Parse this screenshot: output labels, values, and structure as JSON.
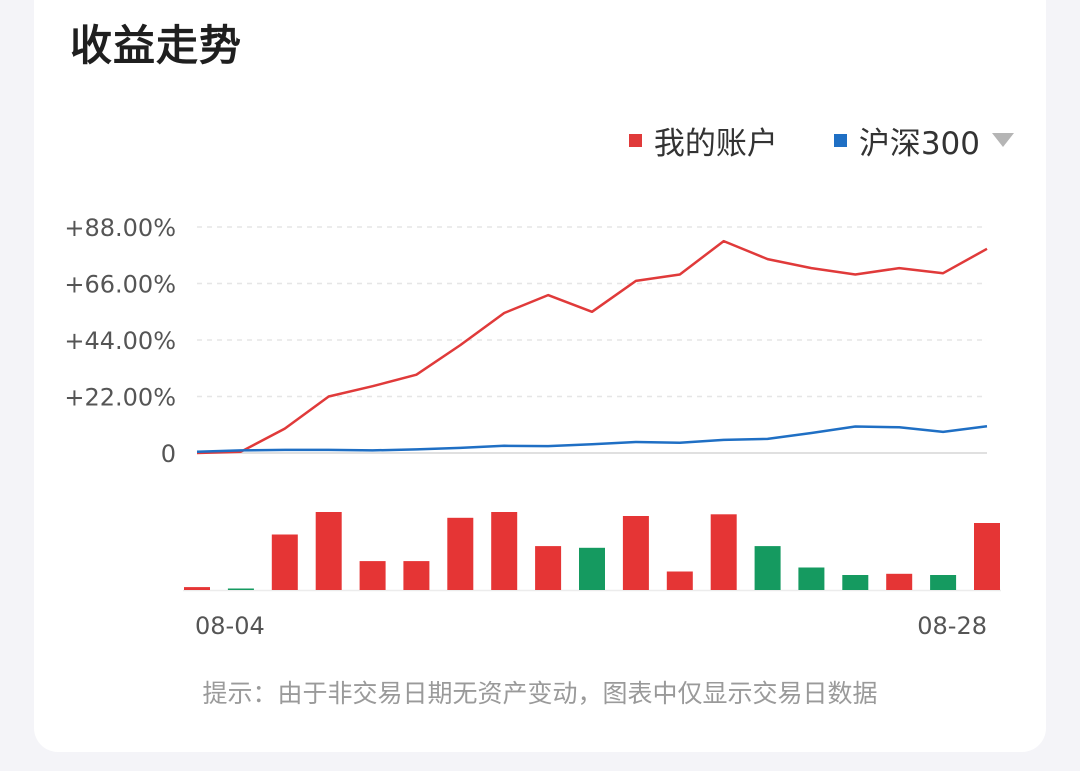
{
  "card": {
    "title": "收益走势",
    "legend_dropdown_icon": "caret-down-icon"
  },
  "note": "提示：由于非交易日期无资产变动，图表中仅显示交易日数据",
  "colors": {
    "account": "#e03a3a",
    "benchmark": "#1f6fc4",
    "gain_bar": "#e53535",
    "loss_bar": "#159a60",
    "grid": "#e6e6e6"
  },
  "chart_data": [
    {
      "type": "line",
      "x_start_label": "08-04",
      "x_end_label": "08-28",
      "x_tick_labels": [
        "08-04",
        "08-28"
      ],
      "ytick_labels": [
        "0",
        "+22.00%",
        "+44.00%",
        "+66.00%",
        "+88.00%"
      ],
      "ytick_values": [
        0,
        22,
        44,
        66,
        88
      ],
      "ylim": [
        0,
        88
      ],
      "grid": true,
      "legend_position": "top-right",
      "series": [
        {
          "name": "我的账户",
          "color": "#e03a3a",
          "values": [
            0,
            0.5,
            9.5,
            22,
            26,
            30.5,
            42,
            54.5,
            61.5,
            55,
            67,
            69.5,
            82.5,
            75.5,
            72,
            69.5,
            72,
            70,
            79.5
          ]
        },
        {
          "name": "沪深300",
          "color": "#1f6fc4",
          "values": [
            0.5,
            1,
            1.2,
            1.2,
            1,
            1.4,
            2,
            2.8,
            2.7,
            3.4,
            4.3,
            4,
            5.1,
            5.5,
            7.8,
            10.3,
            10,
            8.2,
            10.4
          ]
        }
      ]
    },
    {
      "type": "bar",
      "description_free": true,
      "values": [
        0.5,
        0,
        9.6,
        13.5,
        5,
        5,
        12.5,
        13.5,
        7.6,
        -7.3,
        12.8,
        3.2,
        13.1,
        -7.6,
        -3.9,
        -2.6,
        2.8,
        -2.6,
        11.6
      ],
      "colors": [
        "red",
        "green",
        "red",
        "red",
        "red",
        "red",
        "red",
        "red",
        "red",
        "green",
        "red",
        "red",
        "red",
        "green",
        "green",
        "green",
        "red",
        "green",
        "red"
      ]
    }
  ]
}
